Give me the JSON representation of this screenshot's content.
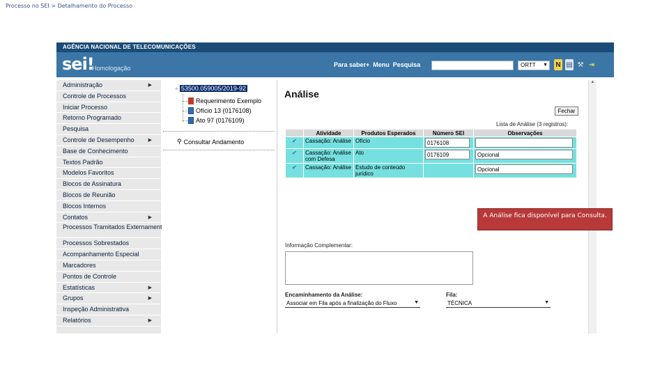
{
  "slide": {
    "caption": "Processo no SEI > Detalhamento do Processo"
  },
  "header": {
    "agency": "AGÊNCIA NACIONAL DE TELECOMUNICAÇÕES",
    "logo": "sei!",
    "environment": "Homologação",
    "nav": [
      "Para saber+",
      "Menu",
      "Pesquisa"
    ],
    "search_value": "",
    "unit": "ORTT",
    "icons": [
      "n-icon",
      "attachments-icon",
      "tools-icon",
      "exit-icon"
    ]
  },
  "menu": {
    "items": [
      {
        "label": "Administração",
        "has_sub": true
      },
      {
        "label": "Controle de Processos",
        "has_sub": false
      },
      {
        "label": "Iniciar Processo",
        "has_sub": false
      },
      {
        "label": "Retorno Programado",
        "has_sub": false
      },
      {
        "label": "Pesquisa",
        "has_sub": false
      },
      {
        "label": "Controle de Desempenho",
        "has_sub": true
      },
      {
        "label": "Base de Conhecimento",
        "has_sub": false
      },
      {
        "label": "Textos Padrão",
        "has_sub": false
      },
      {
        "label": "Modelos Favoritos",
        "has_sub": false
      },
      {
        "label": "Blocos de Assinatura",
        "has_sub": false
      },
      {
        "label": "Blocos de Reunião",
        "has_sub": false
      },
      {
        "label": "Blocos Internos",
        "has_sub": false
      },
      {
        "label": "Contatos",
        "has_sub": true
      },
      {
        "label": "Processos Tramitados Externamente",
        "has_sub": false
      },
      {
        "label": "Processos Sobrestados",
        "has_sub": false
      },
      {
        "label": "Acompanhamento Especial",
        "has_sub": false
      },
      {
        "label": "Marcadores",
        "has_sub": false
      },
      {
        "label": "Pontos de Controle",
        "has_sub": false
      },
      {
        "label": "Estatísticas",
        "has_sub": true
      },
      {
        "label": "Grupos",
        "has_sub": true
      },
      {
        "label": "Inspeção Administrativa",
        "has_sub": false
      },
      {
        "label": "Relatórios",
        "has_sub": true
      }
    ]
  },
  "tree": {
    "process": "53500.059005/2019-92",
    "docs": [
      "Requerimento Exemplo",
      "Ofício 13 (0176108)",
      "Ato 97 (0176109)"
    ],
    "consult": "Consultar Andamento"
  },
  "content": {
    "title": "Análise",
    "close_label": "Fechar",
    "list_caption": "Lista de Análise (3 registros):",
    "columns": [
      "Atividade",
      "Produtos Esperados",
      "Número SEI",
      "Observações"
    ],
    "rows": [
      {
        "activity": "Cassação: Análise",
        "product": "Ofício",
        "sei": "0176108",
        "obs": ""
      },
      {
        "activity": "Cassação: Análise com Defesa",
        "product": "Ato",
        "sei": "0176109",
        "obs": "Opcional"
      },
      {
        "activity": "Cassação: Análise",
        "product": "Estudo de conteúdo jurídico",
        "sei": "",
        "obs": "Opcional"
      }
    ],
    "info_label": "Informação Complementar:",
    "routing_label": "Encaminhamento da Análise:",
    "routing_value": "Associar em Fila após a finalização do Fluxo",
    "queue_label": "Fila:",
    "queue_value": "TÉCNICA"
  },
  "tooltip": {
    "text": "A Análise fica disponível para Consulta."
  },
  "colors": {
    "header": "#3b76a6",
    "agency_bar": "#1b4c78",
    "row": "#76e0e0",
    "tooltip": "#b73939"
  }
}
